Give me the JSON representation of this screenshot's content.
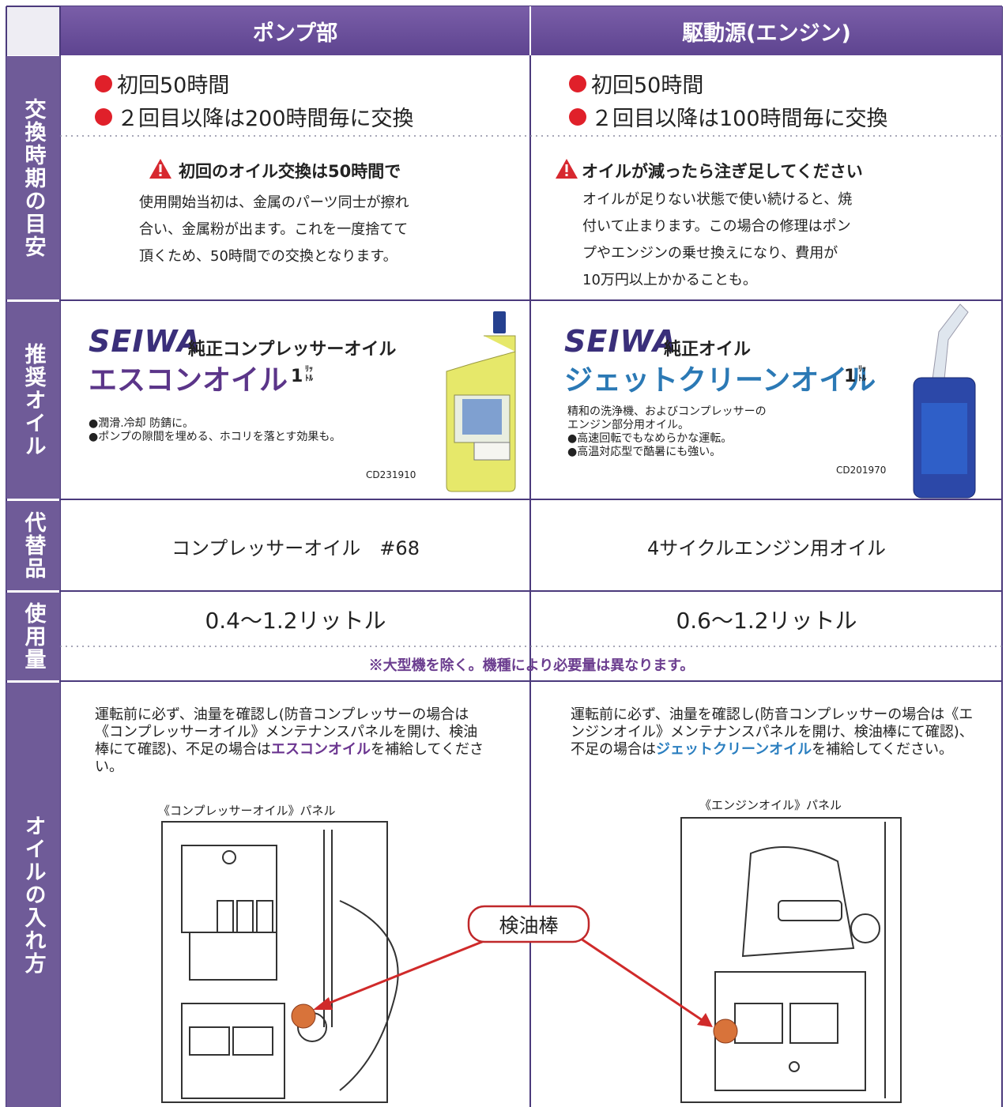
{
  "header": {
    "columns": [
      "ポンプ部",
      "駆動源(エンジン)"
    ]
  },
  "timing": {
    "label": "交換時期の目安",
    "pump": {
      "schedule": [
        "初回50時間",
        "２回目以降は200時間毎に交換"
      ],
      "warning_title": "初回のオイル交換は50時間で",
      "warning_text": [
        "使用開始当初は、金属のパーツ同士が擦れ",
        "合い、金属粉が出ます。これを一度捨てて",
        "頂くため、50時間での交換となります。"
      ]
    },
    "engine": {
      "schedule": [
        "初回50時間",
        "２回目以降は100時間毎に交換"
      ],
      "warning_title": "オイルが減ったら注ぎ足してください",
      "warning_text": [
        "オイルが足りない状態で使い続けると、焼",
        "付いて止まります。この場合の修理はポン",
        "プやエンジンの乗せ換えになり、費用が",
        "10万円以上かかることも。"
      ]
    }
  },
  "oil": {
    "label": "推奨オイル",
    "pump": {
      "brand": "SEIWA",
      "subtitle": "純正コンプレッサーオイル",
      "name": "エスコンオイル",
      "size": "1",
      "unit": "ﾘｯﾄﾙ",
      "description": [
        "●潤滑.冷却 防錆に。",
        "●ポンプの隙間を埋める、ホコリを落とす効果も。"
      ],
      "code": "CD231910"
    },
    "engine": {
      "brand": "SEIWA",
      "subtitle": "純正オイル",
      "name": "ジェットクリーンオイル",
      "size": "1",
      "unit": "ﾘｯﾄﾙ",
      "description": [
        "精和の洗浄機、およびコンプレッサーの",
        "エンジン部分用オイル。",
        "●高速回転でもなめらかな運転。",
        "●高温対応型で酷暑にも強い。"
      ],
      "code": "CD201970"
    }
  },
  "substitute": {
    "label": "代替品",
    "pump": "コンプレッサーオイル　#68",
    "engine": "4サイクルエンジン用オイル"
  },
  "usage": {
    "label": "使用量",
    "pump": "0.4〜1.2リットル",
    "engine": "0.6〜1.2リットル",
    "note": "※大型機を除く。機種により必要量は異なります。"
  },
  "filling": {
    "label": "オイルの入れ方",
    "pump": {
      "instruction_before": "運転前に必ず、油量を確認し(防音コンプレッサーの場合は《コンプレッサーオイル》メンテナンスパネルを開け、検油棒にて確認)、不足の場合は",
      "instruction_highlight": "エスコンオイル",
      "instruction_after": "を補給してください。",
      "panel": "《コンプレッサーオイル》パネル"
    },
    "engine": {
      "instruction_before": "運転前に必ず、油量を確認し(防音コンプレッサーの場合は《エンジンオイル》メンテナンスパネルを開け、検油棒にて確認)、不足の場合は",
      "instruction_highlight": "ジェットクリーンオイル",
      "instruction_after": "を補給してください。",
      "panel": "《エンジンオイル》パネル"
    },
    "callout": "検油棒"
  }
}
